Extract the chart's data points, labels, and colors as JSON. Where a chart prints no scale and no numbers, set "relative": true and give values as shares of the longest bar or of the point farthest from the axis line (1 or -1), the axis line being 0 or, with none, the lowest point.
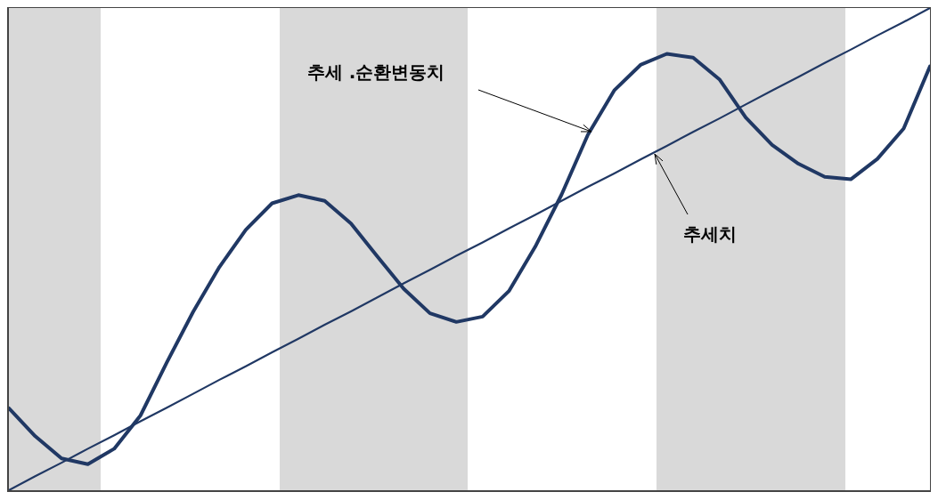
{
  "chart_data": {
    "type": "line",
    "relative": true,
    "categories": [
      null,
      null,
      null,
      null,
      null,
      null,
      null,
      null,
      null,
      null,
      null,
      null,
      null,
      null,
      null,
      null,
      null,
      null,
      null,
      null,
      null,
      null,
      null,
      null,
      null,
      null,
      null,
      null,
      null,
      null,
      null,
      null,
      null,
      null,
      null,
      null
    ],
    "series": [
      {
        "color": "#203864",
        "values": [
          0.17,
          0.112,
          0.066,
          0.054,
          0.086,
          0.155,
          0.265,
          0.37,
          0.463,
          0.54,
          0.595,
          0.612,
          0.6,
          0.553,
          0.485,
          0.418,
          0.367,
          0.349,
          0.36,
          0.413,
          0.505,
          0.613,
          0.737,
          0.829,
          0.882,
          0.905,
          0.897,
          0.852,
          0.773,
          0.716,
          0.677,
          0.65,
          0.645,
          0.687,
          0.75,
          0.879
        ]
      },
      {
        "color": "#203864",
        "values": [
          0,
          0.029,
          0.057,
          0.086,
          0.114,
          0.143,
          0.171,
          0.2,
          0.229,
          0.257,
          0.286,
          0.314,
          0.343,
          0.371,
          0.4,
          0.429,
          0.457,
          0.486,
          0.514,
          0.543,
          0.571,
          0.6,
          0.629,
          0.657,
          0.686,
          0.714,
          0.743,
          0.771,
          0.8,
          0.829,
          0.857,
          0.886,
          0.914,
          0.943,
          0.971,
          1
        ]
      }
    ],
    "annotations": [
      "추세 .순환변동치",
      "추세치"
    ]
  }
}
